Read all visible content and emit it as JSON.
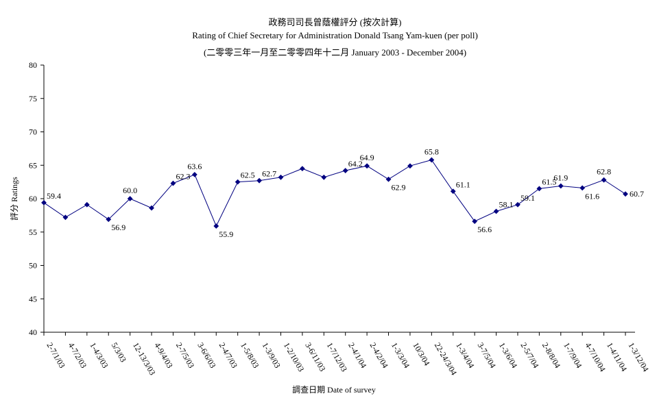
{
  "chart_data": {
    "type": "line",
    "title": "政務司司長曾蔭權評分 (按次計算)",
    "subtitle": "Rating of Chief Secretary for Administration Donald Tsang Yam-kuen  (per poll)",
    "subtitle2": "(二零零三年一月至二零零四年十二月 January 2003 - December 2004)",
    "xlabel": "調查日期 Date of survey",
    "ylabel": "評分 Ratings",
    "ylim": [
      40,
      80
    ],
    "yticks": [
      "40",
      "45",
      "50",
      "55",
      "60",
      "65",
      "70",
      "75",
      "80"
    ],
    "grid": false,
    "color": "#000080",
    "categories": [
      "2-7/1/03",
      "4-7/2/03",
      "1-4/3/03",
      "5/3/03",
      "12-13/3/03",
      "4-9/4/03",
      "2-7/5/03",
      "3-6/6/03",
      "2-4/7/03",
      "1-5/8/03",
      "1-3/9/03",
      "1-2/10/03",
      "3-6/11/03",
      "1-7/12/03",
      "2-4/1/04",
      "2-4/2/04",
      "1-3/3/04",
      "10/3/04",
      "22-24/3/04",
      "1-3/4/04",
      "3-7/5/04",
      "1-3/6/04",
      "2-5/7/04",
      "2-8/8/04",
      "1-7/9/04",
      "4-7/10/04",
      "1-4/11/04",
      "1-3/12/04"
    ],
    "values": [
      59.4,
      57.2,
      59.1,
      56.9,
      60.0,
      58.6,
      62.3,
      63.6,
      55.9,
      62.5,
      62.7,
      63.2,
      64.5,
      63.2,
      64.2,
      64.9,
      62.9,
      64.9,
      65.8,
      61.1,
      56.6,
      58.1,
      59.1,
      61.5,
      61.9,
      61.6,
      62.8,
      60.7
    ],
    "data_labels": [
      "59.4",
      "",
      "",
      "56.9",
      "60.0",
      "",
      "62.3",
      "63.6",
      "55.9",
      "62.5",
      "62.7",
      "",
      "",
      "",
      "64.2",
      "64.9",
      "62.9",
      "",
      "65.8",
      "61.1",
      "56.6",
      "58.1",
      "59.1",
      "61.5",
      "61.9",
      "61.6",
      "62.8",
      "60.7"
    ]
  }
}
